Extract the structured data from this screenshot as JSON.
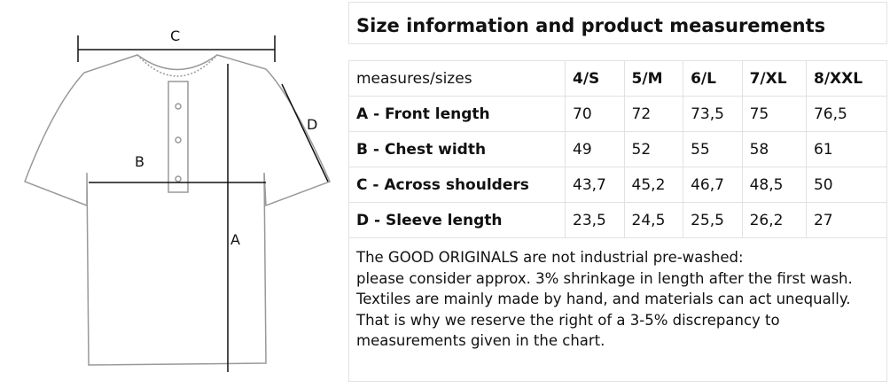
{
  "diagram": {
    "labels": [
      "A",
      "B",
      "C",
      "D"
    ]
  },
  "header": {
    "title": "Size information and product measurements"
  },
  "table": {
    "columns": [
      "measures/sizes",
      "4/S",
      "5/M",
      "6/L",
      "7/XL",
      "8/XXL"
    ],
    "rows": [
      [
        "A - Front length",
        "70",
        "72",
        "73,5",
        "75",
        "76,5"
      ],
      [
        "B - Chest width",
        "49",
        "52",
        "55",
        "58",
        "61"
      ],
      [
        "C - Across shoulders",
        "43,7",
        "45,2",
        "46,7",
        "48,5",
        "50"
      ],
      [
        "D - Sleeve length",
        "23,5",
        "24,5",
        "25,5",
        "26,2",
        "27"
      ]
    ]
  },
  "note": {
    "lines": [
      "The GOOD ORIGINALS are not industrial pre-washed:",
      "please consider approx. 3% shrinkage in length after the first wash.",
      "Textiles are mainly made by hand, and materials can act unequally.",
      "That is why we reserve the right of a 3-5% discrepancy to",
      "measurements given in the chart."
    ]
  }
}
